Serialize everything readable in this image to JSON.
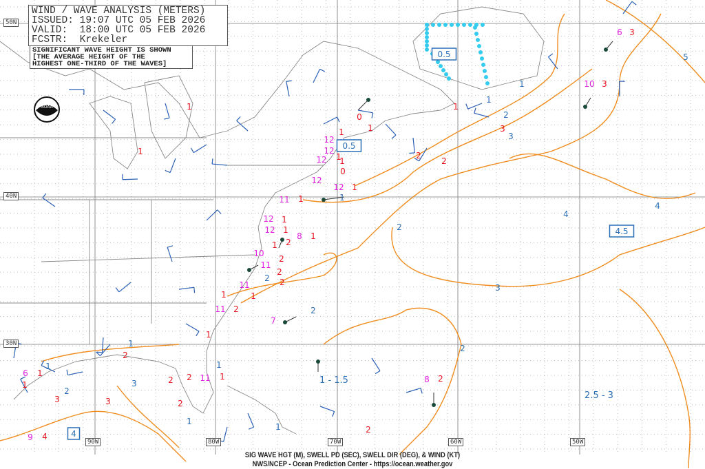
{
  "header": {
    "title": "WIND / WAVE ANALYSIS (METERS)",
    "issued": "ISSUED: 19:07 UTC 05 FEB 2026",
    "valid": "VALID:  18:00 UTC 05 FEB 2026",
    "forecaster": "FCSTR:  Krekeler"
  },
  "note": [
    "SIGNIFICANT WAVE HEIGHT IS SHOWN",
    "[THE AVERAGE HEIGHT OF THE",
    "HIGHEST ONE-THIRD OF THE WAVES]"
  ],
  "latitudes": [
    "50N",
    "40N",
    "30N"
  ],
  "longitudes": [
    "90W",
    "80W",
    "70W",
    "60W",
    "50W"
  ],
  "footer": {
    "line1": "SIG WAVE HGT (M), SWELL PD (SEC), SWELL DIR (DEG), & WIND (KT)",
    "line2": "NWS/NCEP - Ocean Prediction Center - https://ocean.weather.gov"
  },
  "colors": {
    "contour": "#f08c1e",
    "contour_label": "#2a6fb5",
    "wave_height": "#e8141e",
    "swell_period": "#e020e0",
    "wind_barb": "#2a5fb5",
    "ice": "#33ccee",
    "land": "#888888"
  },
  "contour_labels": [
    "1",
    "2",
    "3",
    "4",
    "4",
    "5",
    "1",
    "1",
    "2",
    "3",
    "2",
    "2",
    "3",
    "1",
    "2",
    "1",
    "1",
    "1",
    "1",
    "2"
  ],
  "boxed_values": [
    "0.5",
    "0.5",
    "4.5",
    "4"
  ],
  "ranges": [
    "1 - 1.5",
    "2.5 - 3"
  ],
  "wave_heights": [
    "3",
    "3",
    "1",
    "1",
    "1",
    "3",
    "2",
    "2",
    "1",
    "1",
    "0",
    "1",
    "1",
    "0",
    "1",
    "1",
    "1",
    "1",
    "1",
    "1",
    "2",
    "2",
    "2",
    "2",
    "1",
    "2",
    "1",
    "1",
    "2",
    "1",
    "2",
    "2",
    "2",
    "3",
    "3",
    "1",
    "4",
    "2",
    "1",
    "2"
  ],
  "swell_periods": [
    "6",
    "10",
    "12",
    "12",
    "12",
    "12",
    "12",
    "11",
    "12",
    "12",
    "8",
    "10",
    "11",
    "11",
    "11",
    "7",
    "11",
    "8",
    "9",
    "6"
  ],
  "logo": "NOAA"
}
